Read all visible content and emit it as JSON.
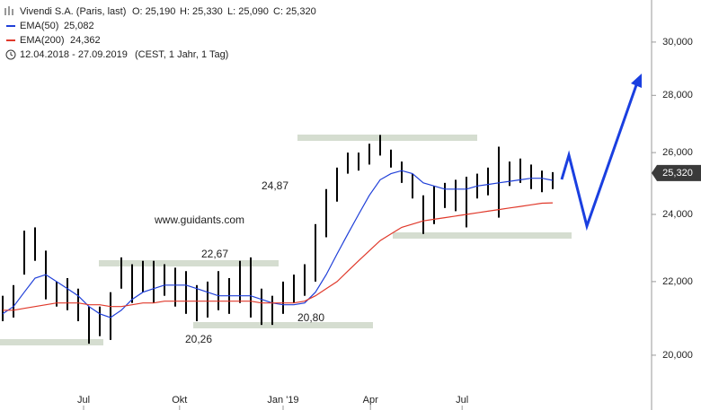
{
  "chart_data": {
    "type": "range",
    "title": "Vivendi S.A. (Paris, last)",
    "quote": [
      "O: 25,190",
      "H: 25,330",
      "L: 25,090",
      "C: 25,320"
    ],
    "period": "12.04.2018 - 27.09.2019",
    "period_note": "(CEST, 1 Jahr, 1 Tag)",
    "watermark": "www.guidants.com",
    "annotations": [
      "24,87",
      "22,67",
      "20,80",
      "20,26"
    ],
    "categories": [
      null,
      null,
      null,
      null,
      null,
      null,
      null,
      null,
      null,
      null,
      null,
      null,
      null,
      null,
      null,
      null,
      null,
      null,
      null,
      null,
      null,
      null,
      null,
      null,
      null,
      null,
      null,
      null,
      null,
      null,
      null,
      null,
      null,
      null,
      null,
      null,
      null,
      null,
      null,
      null,
      null,
      null,
      null,
      null,
      null,
      null,
      null,
      null,
      null,
      null,
      null,
      null
    ],
    "price": {
      "color": "#000000",
      "high": [
        21600,
        21900,
        23500,
        23600,
        22900,
        22000,
        22100,
        21800,
        21300,
        21300,
        21700,
        22700,
        22500,
        22600,
        22600,
        22500,
        22400,
        22300,
        21900,
        22000,
        22300,
        22100,
        22600,
        22700,
        21800,
        21600,
        22000,
        22200,
        22500,
        23700,
        24800,
        25500,
        26000,
        26000,
        26300,
        26600,
        26100,
        25700,
        25300,
        24600,
        24900,
        25000,
        25100,
        25200,
        25300,
        25500,
        26200,
        25700,
        25800,
        25600,
        25400,
        25350
      ],
      "low": [
        20900,
        21000,
        22200,
        22600,
        21500,
        21300,
        21200,
        20900,
        20300,
        20500,
        20400,
        21800,
        21400,
        21700,
        21400,
        21600,
        21300,
        21100,
        20900,
        21000,
        21200,
        21100,
        21400,
        21000,
        20800,
        20800,
        21100,
        21400,
        21600,
        22000,
        23300,
        24400,
        25300,
        25400,
        25600,
        25900,
        25500,
        25000,
        24500,
        23400,
        23700,
        24200,
        24100,
        23600,
        24500,
        24600,
        23900,
        24900,
        25000,
        24800,
        24700,
        24800
      ]
    },
    "series": [
      {
        "name": "EMA(50)",
        "color": "#1f3fd8",
        "value_label": "25,082",
        "values": [
          21100,
          21300,
          21700,
          22100,
          22200,
          22000,
          21800,
          21600,
          21300,
          21100,
          21000,
          21200,
          21500,
          21700,
          21800,
          21900,
          21900,
          21900,
          21800,
          21700,
          21600,
          21600,
          21600,
          21600,
          21500,
          21400,
          21350,
          21350,
          21400,
          21700,
          22200,
          22800,
          23400,
          24000,
          24600,
          25100,
          25300,
          25400,
          25300,
          25000,
          24900,
          24800,
          24800,
          24800,
          24900,
          24950,
          25000,
          25050,
          25100,
          25150,
          25150,
          25082
        ]
      },
      {
        "name": "EMA(200)",
        "color": "#e0392b",
        "value_label": "24,362",
        "values": [
          21200,
          21200,
          21250,
          21300,
          21350,
          21400,
          21400,
          21400,
          21350,
          21350,
          21300,
          21300,
          21350,
          21400,
          21400,
          21450,
          21450,
          21450,
          21450,
          21450,
          21450,
          21450,
          21450,
          21450,
          21400,
          21400,
          21400,
          21400,
          21450,
          21600,
          21800,
          22000,
          22300,
          22600,
          22900,
          23200,
          23400,
          23600,
          23700,
          23800,
          23850,
          23900,
          23950,
          24000,
          24050,
          24100,
          24150,
          24200,
          24250,
          24300,
          24350,
          24362
        ]
      }
    ],
    "last": {
      "value": 25320,
      "label": "25,320"
    },
    "log_scale": true,
    "ylim": [
      18630,
      31680
    ],
    "yticks": [
      {
        "value": 20000,
        "label": "20,000"
      },
      {
        "value": 22000,
        "label": "22,000"
      },
      {
        "value": 24000,
        "label": "24,000"
      },
      {
        "value": 26000,
        "label": "26,000"
      },
      {
        "value": 28000,
        "label": "28,000"
      },
      {
        "value": 30000,
        "label": "30,000"
      }
    ],
    "xticks": [
      {
        "value": 7.5,
        "label": "Jul"
      },
      {
        "value": 16.4,
        "label": "Okt"
      },
      {
        "value": 26,
        "label": "Jan '19"
      },
      {
        "value": 34.1,
        "label": "Apr"
      },
      {
        "value": 42.6,
        "label": "Jul"
      }
    ]
  }
}
